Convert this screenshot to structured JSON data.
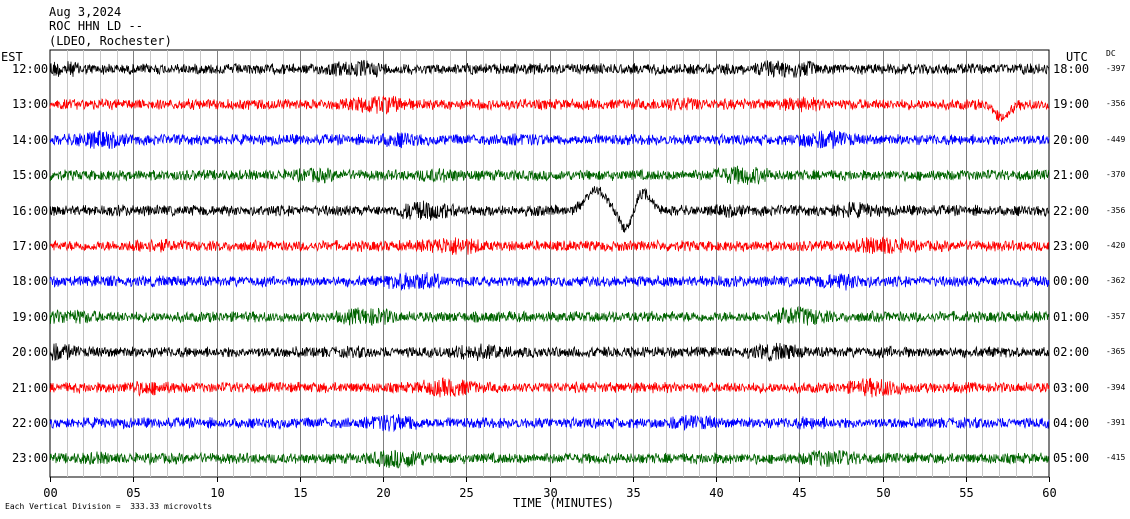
{
  "header": {
    "date": "Aug 3,2024",
    "station": "ROC HHN LD --",
    "network": "(LDEO, Rochester)"
  },
  "left_zone_label": "EST",
  "right_zone_label": "UTC",
  "dc_label": "DC",
  "footer": {
    "scale_note": "Each Vertical Division =  333.33 microvolts"
  },
  "colors": {
    "black": "#000000",
    "red": "#ff0000",
    "blue": "#0000ff",
    "green": "#006400",
    "grid": "#808080"
  },
  "chart_data": {
    "type": "line",
    "title": "ROC HHN LD -- (LDEO, Rochester)",
    "xlabel": "TIME (MINUTES)",
    "xlim": [
      0,
      60
    ],
    "x_ticks": [
      "00",
      "05",
      "10",
      "15",
      "20",
      "25",
      "30",
      "35",
      "40",
      "45",
      "50",
      "55",
      "60"
    ],
    "grid": true,
    "series": [
      {
        "est": "12:00",
        "utc": "18:00",
        "dc": "-397",
        "color": "black"
      },
      {
        "est": "13:00",
        "utc": "19:00",
        "dc": "-356",
        "color": "red"
      },
      {
        "est": "14:00",
        "utc": "20:00",
        "dc": "-449",
        "color": "blue"
      },
      {
        "est": "15:00",
        "utc": "21:00",
        "dc": "-370",
        "color": "green"
      },
      {
        "est": "16:00",
        "utc": "22:00",
        "dc": "-356",
        "color": "black"
      },
      {
        "est": "17:00",
        "utc": "23:00",
        "dc": "-420",
        "color": "red"
      },
      {
        "est": "18:00",
        "utc": "00:00",
        "dc": "-362",
        "color": "blue"
      },
      {
        "est": "19:00",
        "utc": "01:00",
        "dc": "-357",
        "color": "green"
      },
      {
        "est": "20:00",
        "utc": "02:00",
        "dc": "-365",
        "color": "black"
      },
      {
        "est": "21:00",
        "utc": "03:00",
        "dc": "-394",
        "color": "red"
      },
      {
        "est": "22:00",
        "utc": "04:00",
        "dc": "-391",
        "color": "blue"
      },
      {
        "est": "23:00",
        "utc": "05:00",
        "dc": "-415",
        "color": "green"
      }
    ]
  }
}
